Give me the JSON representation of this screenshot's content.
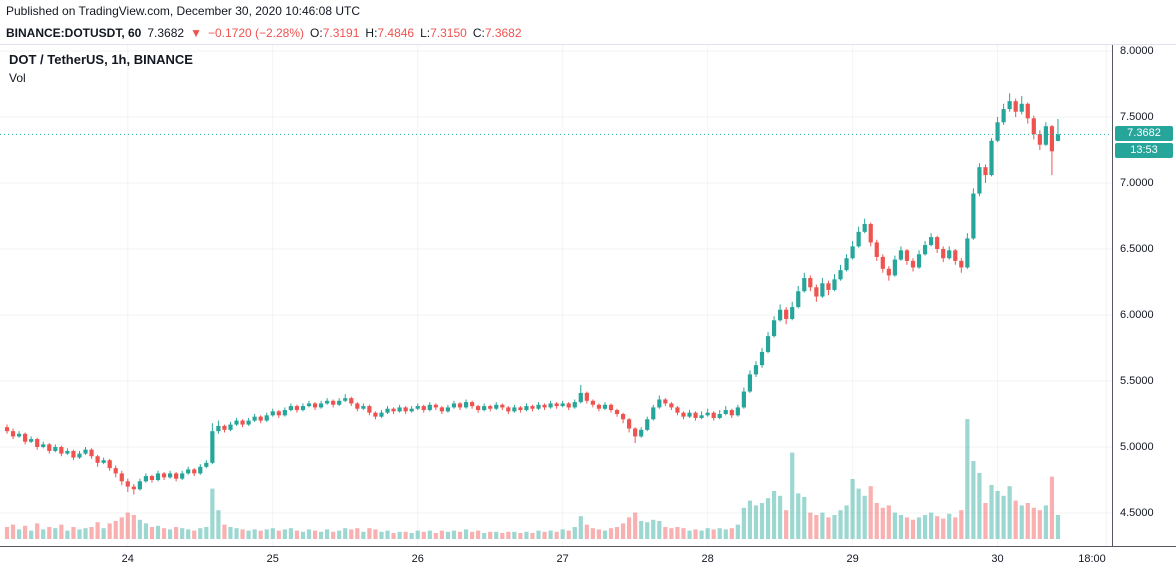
{
  "published_bar": {
    "text": "Published on TradingView.com, December 30, 2020 10:46:08 UTC"
  },
  "symbol_bar": {
    "symbol": "BINANCE:DOTUSDT, 60",
    "last_price": "7.3682",
    "direction_icon": "▼",
    "change": "−0.1720 (−2.28%)",
    "o_label": "O:",
    "o_value": "7.3191",
    "h_label": "H:",
    "h_value": "7.4846",
    "l_label": "L:",
    "l_value": "7.3150",
    "c_label": "C:",
    "c_value": "7.3682"
  },
  "legend": {
    "title": "DOT / TetherUS, 1h, BINANCE",
    "vol_label": "Vol"
  },
  "price_axis": {
    "labels": [
      "8.0000",
      "7.5000",
      "7.0000",
      "6.5000",
      "6.0000",
      "5.5000",
      "5.0000",
      "4.5000"
    ],
    "values": [
      8.0,
      7.5,
      7.0,
      6.5,
      6.0,
      5.5,
      5.0,
      4.5
    ],
    "last_badge": "7.3682",
    "countdown_badge": "13:53"
  },
  "time_axis": {
    "ticks": [
      {
        "label": "24",
        "index": 20
      },
      {
        "label": "25",
        "index": 44
      },
      {
        "label": "26",
        "index": 68
      },
      {
        "label": "27",
        "index": 92
      },
      {
        "label": "28",
        "index": 116
      },
      {
        "label": "29",
        "index": 140
      },
      {
        "label": "30",
        "index": 164
      },
      {
        "label": "18:00",
        "index": 182
      }
    ]
  },
  "colors": {
    "up": "#26a69a",
    "down": "#ef5350",
    "badge": "#26a69a",
    "text": "#131722",
    "change_red": "#ef5350"
  },
  "chart_data": {
    "type": "candlestick+volume",
    "title": "DOT / TetherUS, 1h, BINANCE",
    "symbol": "BINANCE:DOTUSDT",
    "interval_minutes": 60,
    "price_range": [
      4.5,
      8.0
    ],
    "last_price": 7.3682,
    "last_bar": {
      "open": 7.3191,
      "high": 7.4846,
      "low": 7.315,
      "close": 7.3682
    },
    "volume_max_units": 10,
    "candles": [
      [
        5.15,
        5.17,
        5.1,
        5.12,
        1.0
      ],
      [
        5.12,
        5.14,
        5.06,
        5.08,
        1.2
      ],
      [
        5.08,
        5.12,
        5.07,
        5.1,
        0.8
      ],
      [
        5.1,
        5.11,
        5.02,
        5.04,
        1.1
      ],
      [
        5.04,
        5.08,
        5.03,
        5.06,
        0.7
      ],
      [
        5.06,
        5.07,
        4.98,
        5.0,
        1.3
      ],
      [
        5.0,
        5.04,
        4.99,
        5.02,
        0.8
      ],
      [
        5.02,
        5.03,
        4.95,
        4.97,
        1.0
      ],
      [
        4.97,
        5.02,
        4.96,
        5.0,
        0.9
      ],
      [
        5.0,
        5.01,
        4.93,
        4.95,
        1.2
      ],
      [
        4.95,
        4.99,
        4.94,
        4.97,
        0.7
      ],
      [
        4.97,
        4.98,
        4.9,
        4.92,
        1.0
      ],
      [
        4.92,
        4.97,
        4.91,
        4.95,
        0.8
      ],
      [
        4.95,
        5.0,
        4.94,
        4.98,
        0.9
      ],
      [
        4.98,
        4.99,
        4.91,
        4.93,
        1.0
      ],
      [
        4.93,
        4.94,
        4.85,
        4.88,
        1.4
      ],
      [
        4.88,
        4.92,
        4.87,
        4.9,
        0.9
      ],
      [
        4.9,
        4.91,
        4.82,
        4.84,
        1.3
      ],
      [
        4.84,
        4.86,
        4.77,
        4.8,
        1.5
      ],
      [
        4.8,
        4.82,
        4.71,
        4.74,
        1.8
      ],
      [
        4.74,
        4.76,
        4.66,
        4.7,
        2.2
      ],
      [
        4.7,
        4.72,
        4.64,
        4.68,
        2.0
      ],
      [
        4.68,
        4.76,
        4.67,
        4.74,
        1.6
      ],
      [
        4.74,
        4.8,
        4.73,
        4.78,
        1.3
      ],
      [
        4.78,
        4.79,
        4.73,
        4.75,
        1.0
      ],
      [
        4.75,
        4.82,
        4.74,
        4.8,
        1.1
      ],
      [
        4.8,
        4.81,
        4.75,
        4.77,
        0.9
      ],
      [
        4.77,
        4.82,
        4.76,
        4.8,
        0.8
      ],
      [
        4.8,
        4.81,
        4.74,
        4.76,
        1.0
      ],
      [
        4.76,
        4.82,
        4.75,
        4.8,
        0.9
      ],
      [
        4.8,
        4.85,
        4.79,
        4.83,
        0.8
      ],
      [
        4.83,
        4.84,
        4.78,
        4.8,
        0.7
      ],
      [
        4.8,
        4.87,
        4.79,
        4.85,
        0.9
      ],
      [
        4.85,
        4.9,
        4.84,
        4.88,
        1.0
      ],
      [
        4.88,
        5.18,
        4.87,
        5.12,
        4.2
      ],
      [
        5.12,
        5.2,
        5.1,
        5.16,
        2.4
      ],
      [
        5.16,
        5.17,
        5.11,
        5.13,
        1.2
      ],
      [
        5.13,
        5.19,
        5.12,
        5.17,
        1.0
      ],
      [
        5.17,
        5.22,
        5.16,
        5.2,
        0.9
      ],
      [
        5.2,
        5.21,
        5.15,
        5.17,
        0.8
      ],
      [
        5.17,
        5.22,
        5.16,
        5.2,
        0.7
      ],
      [
        5.2,
        5.25,
        5.19,
        5.23,
        0.8
      ],
      [
        5.23,
        5.24,
        5.18,
        5.2,
        0.7
      ],
      [
        5.2,
        5.26,
        5.19,
        5.24,
        0.8
      ],
      [
        5.24,
        5.29,
        5.23,
        5.27,
        0.9
      ],
      [
        5.27,
        5.28,
        5.22,
        5.24,
        0.7
      ],
      [
        5.24,
        5.3,
        5.23,
        5.28,
        0.8
      ],
      [
        5.28,
        5.33,
        5.27,
        5.31,
        0.9
      ],
      [
        5.31,
        5.32,
        5.26,
        5.28,
        0.7
      ],
      [
        5.28,
        5.33,
        5.27,
        5.31,
        0.6
      ],
      [
        5.31,
        5.35,
        5.3,
        5.33,
        0.8
      ],
      [
        5.33,
        5.34,
        5.28,
        5.3,
        0.7
      ],
      [
        5.3,
        5.35,
        5.29,
        5.33,
        0.6
      ],
      [
        5.33,
        5.37,
        5.32,
        5.35,
        0.8
      ],
      [
        5.35,
        5.36,
        5.3,
        5.32,
        0.6
      ],
      [
        5.32,
        5.37,
        5.31,
        5.35,
        0.7
      ],
      [
        5.35,
        5.4,
        5.34,
        5.37,
        0.9
      ],
      [
        5.37,
        5.38,
        5.31,
        5.33,
        0.8
      ],
      [
        5.33,
        5.34,
        5.27,
        5.29,
        0.9
      ],
      [
        5.29,
        5.33,
        5.28,
        5.31,
        0.6
      ],
      [
        5.31,
        5.32,
        5.24,
        5.26,
        0.9
      ],
      [
        5.26,
        5.27,
        5.21,
        5.23,
        0.8
      ],
      [
        5.23,
        5.28,
        5.22,
        5.26,
        0.6
      ],
      [
        5.26,
        5.31,
        5.25,
        5.29,
        0.7
      ],
      [
        5.29,
        5.3,
        5.25,
        5.27,
        0.5
      ],
      [
        5.27,
        5.32,
        5.26,
        5.3,
        0.6
      ],
      [
        5.3,
        5.31,
        5.25,
        5.27,
        0.6
      ],
      [
        5.27,
        5.31,
        5.26,
        5.29,
        0.5
      ],
      [
        5.29,
        5.33,
        5.28,
        5.31,
        0.7
      ],
      [
        5.31,
        5.32,
        5.26,
        5.28,
        0.6
      ],
      [
        5.28,
        5.34,
        5.27,
        5.32,
        0.7
      ],
      [
        5.32,
        5.33,
        5.28,
        5.3,
        0.5
      ],
      [
        5.3,
        5.31,
        5.25,
        5.27,
        0.7
      ],
      [
        5.27,
        5.32,
        5.26,
        5.3,
        0.6
      ],
      [
        5.3,
        5.35,
        5.29,
        5.33,
        0.7
      ],
      [
        5.33,
        5.34,
        5.28,
        5.3,
        0.6
      ],
      [
        5.3,
        5.36,
        5.29,
        5.34,
        0.8
      ],
      [
        5.34,
        5.35,
        5.29,
        5.31,
        0.6
      ],
      [
        5.31,
        5.32,
        5.26,
        5.28,
        0.7
      ],
      [
        5.28,
        5.33,
        5.27,
        5.31,
        0.5
      ],
      [
        5.31,
        5.32,
        5.27,
        5.29,
        0.6
      ],
      [
        5.29,
        5.34,
        5.28,
        5.32,
        0.6
      ],
      [
        5.32,
        5.33,
        5.28,
        5.3,
        0.5
      ],
      [
        5.3,
        5.31,
        5.25,
        5.27,
        0.6
      ],
      [
        5.27,
        5.32,
        5.26,
        5.3,
        0.6
      ],
      [
        5.3,
        5.31,
        5.26,
        5.28,
        0.5
      ],
      [
        5.28,
        5.33,
        5.27,
        5.31,
        0.6
      ],
      [
        5.31,
        5.32,
        5.27,
        5.29,
        0.5
      ],
      [
        5.29,
        5.34,
        5.28,
        5.32,
        0.7
      ],
      [
        5.32,
        5.33,
        5.28,
        5.3,
        0.6
      ],
      [
        5.3,
        5.35,
        5.29,
        5.33,
        0.7
      ],
      [
        5.33,
        5.34,
        5.29,
        5.31,
        0.6
      ],
      [
        5.31,
        5.35,
        5.3,
        5.33,
        0.8
      ],
      [
        5.33,
        5.34,
        5.28,
        5.3,
        0.7
      ],
      [
        5.3,
        5.36,
        5.29,
        5.34,
        1.0
      ],
      [
        5.34,
        5.47,
        5.33,
        5.41,
        1.9
      ],
      [
        5.41,
        5.42,
        5.33,
        5.35,
        1.2
      ],
      [
        5.35,
        5.36,
        5.3,
        5.32,
        0.9
      ],
      [
        5.32,
        5.33,
        5.27,
        5.29,
        0.8
      ],
      [
        5.29,
        5.34,
        5.28,
        5.32,
        0.7
      ],
      [
        5.32,
        5.33,
        5.26,
        5.28,
        0.9
      ],
      [
        5.28,
        5.29,
        5.23,
        5.25,
        1.0
      ],
      [
        5.25,
        5.26,
        5.18,
        5.21,
        1.3
      ],
      [
        5.21,
        5.22,
        5.11,
        5.14,
        1.8
      ],
      [
        5.14,
        5.15,
        5.03,
        5.08,
        2.2
      ],
      [
        5.08,
        5.15,
        5.07,
        5.13,
        1.5
      ],
      [
        5.13,
        5.23,
        5.12,
        5.21,
        1.4
      ],
      [
        5.21,
        5.32,
        5.2,
        5.3,
        1.6
      ],
      [
        5.3,
        5.39,
        5.29,
        5.36,
        1.5
      ],
      [
        5.36,
        5.37,
        5.31,
        5.33,
        1.0
      ],
      [
        5.33,
        5.34,
        5.28,
        5.3,
        0.9
      ],
      [
        5.3,
        5.31,
        5.24,
        5.26,
        1.0
      ],
      [
        5.26,
        5.27,
        5.21,
        5.23,
        0.9
      ],
      [
        5.23,
        5.28,
        5.22,
        5.26,
        0.7
      ],
      [
        5.26,
        5.27,
        5.2,
        5.22,
        0.8
      ],
      [
        5.22,
        5.27,
        5.21,
        5.24,
        0.7
      ],
      [
        5.24,
        5.29,
        5.23,
        5.26,
        0.9
      ],
      [
        5.26,
        5.27,
        5.2,
        5.22,
        0.8
      ],
      [
        5.22,
        5.28,
        5.21,
        5.25,
        0.9
      ],
      [
        5.25,
        5.31,
        5.24,
        5.28,
        0.8
      ],
      [
        5.28,
        5.29,
        5.22,
        5.24,
        0.9
      ],
      [
        5.24,
        5.32,
        5.23,
        5.3,
        1.2
      ],
      [
        5.3,
        5.45,
        5.29,
        5.42,
        2.6
      ],
      [
        5.42,
        5.58,
        5.41,
        5.55,
        3.2
      ],
      [
        5.55,
        5.65,
        5.53,
        5.62,
        2.8
      ],
      [
        5.62,
        5.75,
        5.6,
        5.72,
        3.0
      ],
      [
        5.72,
        5.87,
        5.71,
        5.84,
        3.4
      ],
      [
        5.84,
        5.99,
        5.83,
        5.96,
        4.0
      ],
      [
        5.96,
        6.08,
        5.95,
        6.04,
        3.6
      ],
      [
        6.04,
        6.06,
        5.93,
        5.97,
        2.4
      ],
      [
        5.97,
        6.1,
        5.96,
        6.06,
        7.2
      ],
      [
        6.06,
        6.22,
        6.05,
        6.18,
        3.8
      ],
      [
        6.18,
        6.32,
        6.17,
        6.28,
        3.5
      ],
      [
        6.28,
        6.3,
        6.18,
        6.21,
        2.2
      ],
      [
        6.21,
        6.23,
        6.1,
        6.14,
        2.0
      ],
      [
        6.14,
        6.28,
        6.13,
        6.24,
        2.2
      ],
      [
        6.24,
        6.26,
        6.15,
        6.19,
        1.8
      ],
      [
        6.19,
        6.31,
        6.18,
        6.27,
        2.0
      ],
      [
        6.27,
        6.38,
        6.26,
        6.34,
        2.4
      ],
      [
        6.34,
        6.46,
        6.33,
        6.43,
        2.8
      ],
      [
        6.43,
        6.56,
        6.42,
        6.52,
        5.0
      ],
      [
        6.52,
        6.67,
        6.51,
        6.63,
        4.2
      ],
      [
        6.63,
        6.73,
        6.62,
        6.69,
        3.6
      ],
      [
        6.69,
        6.7,
        6.52,
        6.55,
        4.4
      ],
      [
        6.55,
        6.57,
        6.41,
        6.44,
        3.0
      ],
      [
        6.44,
        6.46,
        6.32,
        6.35,
        2.6
      ],
      [
        6.35,
        6.37,
        6.26,
        6.3,
        2.8
      ],
      [
        6.3,
        6.45,
        6.29,
        6.42,
        2.2
      ],
      [
        6.42,
        6.52,
        6.41,
        6.49,
        2.0
      ],
      [
        6.49,
        6.5,
        6.38,
        6.41,
        1.8
      ],
      [
        6.41,
        6.43,
        6.33,
        6.36,
        1.6
      ],
      [
        6.36,
        6.49,
        6.35,
        6.46,
        1.8
      ],
      [
        6.46,
        6.56,
        6.45,
        6.53,
        2.0
      ],
      [
        6.53,
        6.62,
        6.52,
        6.59,
        2.2
      ],
      [
        6.59,
        6.6,
        6.47,
        6.5,
        1.9
      ],
      [
        6.5,
        6.52,
        6.4,
        6.43,
        1.7
      ],
      [
        6.43,
        6.52,
        6.42,
        6.49,
        2.1
      ],
      [
        6.49,
        6.5,
        6.38,
        6.41,
        1.8
      ],
      [
        6.41,
        6.43,
        6.32,
        6.36,
        2.4
      ],
      [
        6.36,
        6.62,
        6.35,
        6.58,
        10.0
      ],
      [
        6.58,
        6.96,
        6.57,
        6.92,
        6.5
      ],
      [
        6.92,
        7.15,
        6.9,
        7.12,
        5.5
      ],
      [
        7.12,
        7.14,
        7.0,
        7.06,
        3.0
      ],
      [
        7.06,
        7.34,
        7.05,
        7.32,
        4.5
      ],
      [
        7.32,
        7.5,
        7.31,
        7.46,
        4.0
      ],
      [
        7.46,
        7.6,
        7.44,
        7.56,
        3.6
      ],
      [
        7.56,
        7.68,
        7.54,
        7.62,
        4.4
      ],
      [
        7.62,
        7.64,
        7.5,
        7.54,
        3.2
      ],
      [
        7.54,
        7.66,
        7.52,
        7.6,
        2.8
      ],
      [
        7.6,
        7.61,
        7.45,
        7.49,
        3.0
      ],
      [
        7.49,
        7.51,
        7.33,
        7.37,
        2.6
      ],
      [
        7.37,
        7.4,
        7.25,
        7.29,
        2.4
      ],
      [
        7.29,
        7.46,
        7.28,
        7.43,
        2.8
      ],
      [
        7.43,
        7.44,
        7.06,
        7.24,
        5.2
      ],
      [
        7.3191,
        7.4846,
        7.315,
        7.3682,
        2.0
      ]
    ]
  }
}
